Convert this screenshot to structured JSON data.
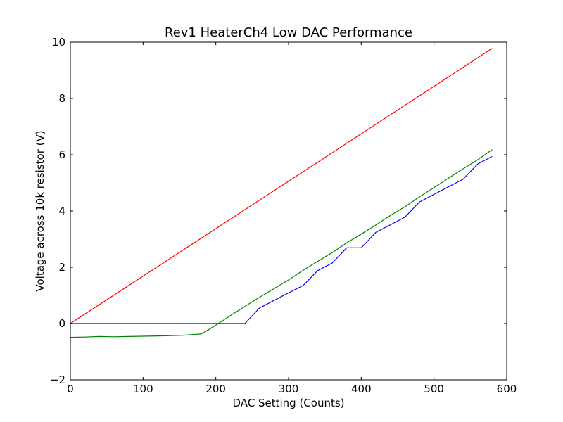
{
  "chart_data": {
    "type": "line",
    "title": "Rev1 HeaterCh4 Low DAC Performance",
    "xlabel": "DAC Setting (Counts)",
    "ylabel": "Voltage across 10k resistor (V)",
    "xlim": [
      0,
      600
    ],
    "ylim": [
      -2,
      10
    ],
    "xticks": [
      0,
      100,
      200,
      300,
      400,
      500,
      600
    ],
    "yticks": [
      -2,
      0,
      2,
      4,
      6,
      8,
      10
    ],
    "grid": false,
    "series": [
      {
        "color": "#ff0000",
        "points": [
          [
            0,
            0
          ],
          [
            580,
            9.78
          ]
        ]
      },
      {
        "color": "#008000",
        "points": [
          [
            0,
            -0.49
          ],
          [
            20,
            -0.48
          ],
          [
            40,
            -0.46
          ],
          [
            60,
            -0.47
          ],
          [
            80,
            -0.46
          ],
          [
            100,
            -0.45
          ],
          [
            120,
            -0.44
          ],
          [
            140,
            -0.43
          ],
          [
            160,
            -0.41
          ],
          [
            180,
            -0.37
          ],
          [
            190,
            -0.22
          ],
          [
            200,
            -0.06
          ],
          [
            220,
            0.28
          ],
          [
            240,
            0.61
          ],
          [
            260,
            0.93
          ],
          [
            280,
            1.24
          ],
          [
            300,
            1.55
          ],
          [
            320,
            1.89
          ],
          [
            340,
            2.21
          ],
          [
            360,
            2.52
          ],
          [
            380,
            2.87
          ],
          [
            400,
            3.18
          ],
          [
            420,
            3.5
          ],
          [
            440,
            3.84
          ],
          [
            460,
            4.15
          ],
          [
            480,
            4.5
          ],
          [
            500,
            4.83
          ],
          [
            520,
            5.17
          ],
          [
            540,
            5.5
          ],
          [
            560,
            5.82
          ],
          [
            580,
            6.18
          ]
        ]
      },
      {
        "color": "#0000ff",
        "points": [
          [
            0,
            0
          ],
          [
            240,
            0
          ],
          [
            260,
            0.55
          ],
          [
            280,
            0.82
          ],
          [
            300,
            1.09
          ],
          [
            320,
            1.35
          ],
          [
            340,
            1.88
          ],
          [
            360,
            2.15
          ],
          [
            380,
            2.69
          ],
          [
            400,
            2.69
          ],
          [
            420,
            3.24
          ],
          [
            440,
            3.51
          ],
          [
            460,
            3.78
          ],
          [
            480,
            4.32
          ],
          [
            500,
            4.59
          ],
          [
            520,
            4.86
          ],
          [
            540,
            5.13
          ],
          [
            560,
            5.67
          ],
          [
            580,
            5.94
          ]
        ]
      }
    ]
  }
}
